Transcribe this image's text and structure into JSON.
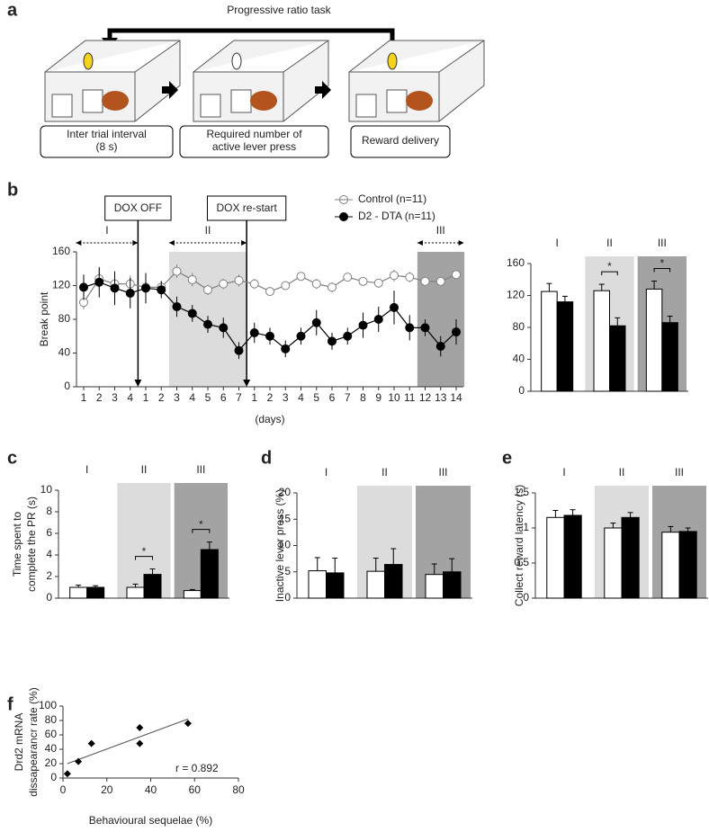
{
  "figure": {
    "panel_labels": [
      "a",
      "b",
      "c",
      "d",
      "e",
      "f"
    ],
    "diagram": {
      "title": "Progressive ratio task",
      "steps": [
        [
          "Inter trial interval",
          "(8 s)"
        ],
        [
          "Required number of",
          "active lever press"
        ],
        [
          "Reward delivery"
        ]
      ]
    }
  },
  "chart_data": [
    {
      "type": "line",
      "y_label": [
        "Break point"
      ],
      "x_label": "(days)",
      "categories": [
        "1",
        "2",
        "3",
        "4",
        "1",
        "2",
        "3",
        "4",
        "5",
        "6",
        "7",
        "1",
        "2",
        "3",
        "4",
        "5",
        "6",
        "7",
        "8",
        "9",
        "10",
        "11",
        "12",
        "13",
        "14"
      ],
      "ylim": [
        0,
        160
      ],
      "yticks": [
        0,
        40,
        80,
        120,
        160
      ],
      "series": [
        {
          "name": "Control  (n=11)",
          "color": "#808080",
          "fill": "#ffffff",
          "values": [
            100,
            128,
            122,
            122,
            118,
            118,
            137,
            127,
            115,
            122,
            126,
            122,
            113,
            120,
            131,
            122,
            118,
            130,
            125,
            123,
            132,
            130,
            125,
            125,
            133
          ],
          "errors": [
            8,
            12,
            10,
            10,
            10,
            8,
            8,
            8,
            6,
            6,
            7,
            6,
            5,
            5,
            5,
            6,
            6,
            5,
            5,
            5,
            7,
            6,
            5,
            5,
            5
          ]
        },
        {
          "name": "D2 - DTA (n=11)",
          "color": "#000000",
          "fill": "#000000",
          "values": [
            118,
            124,
            117,
            111,
            117,
            115,
            95,
            87,
            74,
            70,
            43,
            64,
            60,
            45,
            60,
            76,
            54,
            60,
            73,
            80,
            94,
            70,
            70,
            48,
            65
          ],
          "errors": [
            15,
            18,
            20,
            18,
            18,
            10,
            12,
            10,
            10,
            12,
            10,
            12,
            10,
            10,
            10,
            15,
            10,
            10,
            15,
            15,
            20,
            15,
            10,
            12,
            15
          ]
        }
      ],
      "phase_labels": [
        "I",
        "II",
        "III"
      ],
      "phase_of": [
        0,
        0,
        0,
        0,
        null,
        null,
        1,
        1,
        1,
        1,
        1,
        null,
        null,
        null,
        null,
        null,
        null,
        null,
        null,
        null,
        null,
        null,
        2,
        2,
        2
      ],
      "phase_shade": [
        null,
        "#dcdcdc",
        "#a3a3a3"
      ],
      "events": [
        {
          "label": "DOX OFF",
          "after": 3
        },
        {
          "label": "DOX re-start",
          "after": 10
        }
      ]
    },
    {
      "type": "bar",
      "categories": [
        "I",
        "II",
        "III"
      ],
      "ylim": [
        0,
        160
      ],
      "yticks": [
        0,
        40,
        80,
        120,
        160
      ],
      "series": [
        {
          "color": "#000000",
          "fill": "#ffffff",
          "values": [
            125,
            126,
            128
          ],
          "errors": [
            10,
            8,
            10
          ]
        },
        {
          "color": "#000000",
          "fill": "#000000",
          "values": [
            112,
            82,
            86
          ],
          "errors": [
            7,
            10,
            8
          ]
        }
      ],
      "band_colors": [
        null,
        "#dcdcdc",
        "#a3a3a3"
      ],
      "significance": [
        null,
        "*",
        "*"
      ]
    },
    {
      "type": "bar",
      "y_label": [
        "Time spent to",
        "complete the PR (s)"
      ],
      "categories": [
        "I",
        "II",
        "III"
      ],
      "ylim": [
        0,
        10
      ],
      "yticks": [
        0,
        2,
        4,
        6,
        8,
        10
      ],
      "series": [
        {
          "color": "#000000",
          "fill": "#ffffff",
          "values": [
            1.0,
            1.0,
            0.7
          ],
          "errors": [
            0.2,
            0.3,
            0.1
          ]
        },
        {
          "color": "#000000",
          "fill": "#000000",
          "values": [
            1.0,
            2.2,
            4.5
          ],
          "errors": [
            0.15,
            0.5,
            0.7
          ]
        }
      ],
      "band_colors": [
        null,
        "#dcdcdc",
        "#a3a3a3"
      ],
      "significance": [
        null,
        "*",
        "*"
      ]
    },
    {
      "type": "bar",
      "y_label": [
        "Inactive lever press (%)"
      ],
      "categories": [
        "I",
        "II",
        "III"
      ],
      "ylim": [
        0,
        20
      ],
      "yticks": [
        0,
        5,
        10,
        15,
        20
      ],
      "series": [
        {
          "color": "#000000",
          "fill": "#ffffff",
          "values": [
            5.2,
            5.1,
            4.5
          ],
          "errors": [
            2.5,
            2.5,
            2
          ]
        },
        {
          "color": "#000000",
          "fill": "#000000",
          "values": [
            4.8,
            6.4,
            5.0
          ],
          "errors": [
            2.8,
            3,
            2.5
          ]
        }
      ],
      "band_colors": [
        null,
        "#dcdcdc",
        "#a3a3a3"
      ]
    },
    {
      "type": "bar",
      "y_label": [
        "Collect reward latency (s)"
      ],
      "categories": [
        "I",
        "II",
        "III"
      ],
      "ylim": [
        0,
        1.5
      ],
      "yticks": [
        0,
        0.5,
        1,
        1.5
      ],
      "series": [
        {
          "color": "#000000",
          "fill": "#ffffff",
          "values": [
            1.15,
            1.0,
            0.94
          ],
          "errors": [
            0.1,
            0.07,
            0.08
          ]
        },
        {
          "color": "#000000",
          "fill": "#000000",
          "values": [
            1.18,
            1.15,
            0.95
          ],
          "errors": [
            0.08,
            0.07,
            0.05
          ]
        }
      ],
      "band_colors": [
        null,
        "#dcdcdc",
        "#a3a3a3"
      ]
    },
    {
      "type": "scatter",
      "x_label": "Behavioural sequelae (%)",
      "y_label": [
        "Drd2 mRNA",
        "dissapearancr rate (%)"
      ],
      "x": [
        2,
        7,
        13,
        35,
        35,
        57
      ],
      "values": [
        6,
        23,
        48,
        70,
        48,
        76
      ],
      "color": "#000000",
      "xlim": [
        0,
        80
      ],
      "xticks": [
        0,
        20,
        40,
        60,
        80
      ],
      "ylim": [
        0,
        100
      ],
      "yticks": [
        0,
        20,
        40,
        60,
        80,
        100
      ],
      "fit_line": {
        "x": [
          2,
          57
        ],
        "y": [
          20,
          82
        ]
      },
      "annotation": "r = 0.892"
    }
  ]
}
